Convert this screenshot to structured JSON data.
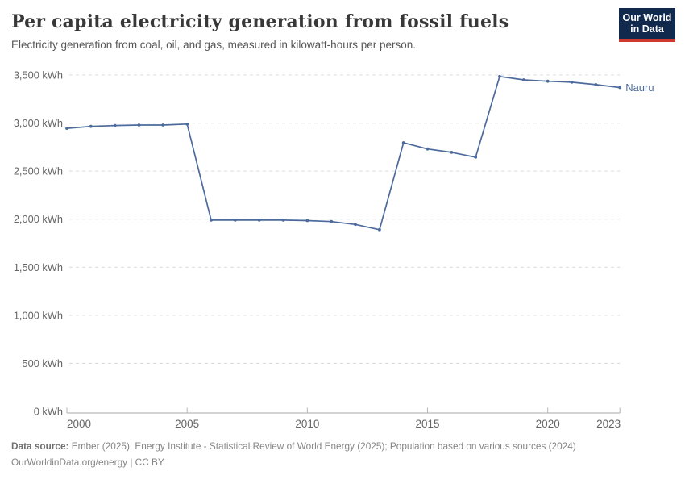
{
  "header": {
    "title": "Per capita electricity generation from fossil fuels",
    "subtitle": "Electricity generation from coal, oil, and gas, measured in kilowatt-hours per person.",
    "logo": {
      "line1": "Our World",
      "line2": "in Data",
      "bg_color": "#10294d",
      "accent_color": "#d0392f"
    }
  },
  "chart_data": {
    "type": "line",
    "title": "Per capita electricity generation from fossil fuels",
    "xlabel": "",
    "ylabel": "",
    "xlim": [
      2000,
      2023
    ],
    "ylim": [
      0,
      3500
    ],
    "x_ticks": [
      2000,
      2005,
      2010,
      2015,
      2020,
      2023
    ],
    "y_ticks": [
      0,
      500,
      1000,
      1500,
      2000,
      2500,
      3000,
      3500
    ],
    "y_tick_labels": [
      "0 kWh",
      "500 kWh",
      "1,000 kWh",
      "1,500 kWh",
      "2,000 kWh",
      "2,500 kWh",
      "3,000 kWh",
      "3,500 kWh"
    ],
    "grid": "horizontal-dashed",
    "legend": "end-of-line-label",
    "x": [
      2000,
      2001,
      2002,
      2003,
      2004,
      2005,
      2006,
      2007,
      2008,
      2009,
      2010,
      2011,
      2012,
      2013,
      2014,
      2015,
      2016,
      2017,
      2018,
      2019,
      2020,
      2021,
      2022,
      2023
    ],
    "series": [
      {
        "name": "Nauru",
        "color": "#4c6a9c",
        "values": [
          2945,
          2965,
          2975,
          2980,
          2980,
          2990,
          1990,
          1990,
          1990,
          1990,
          1985,
          1975,
          1945,
          1890,
          2795,
          2730,
          2695,
          2645,
          3485,
          3450,
          3435,
          3425,
          3400,
          3370
        ]
      }
    ]
  },
  "footer": {
    "datasource_label": "Data source:",
    "datasource_text": " Ember (2025); Energy Institute - Statistical Review of World Energy (2025); Population based on various sources (2024)",
    "link_text": "OurWorldinData.org/energy",
    "separator": " | ",
    "license_text": "CC BY"
  }
}
